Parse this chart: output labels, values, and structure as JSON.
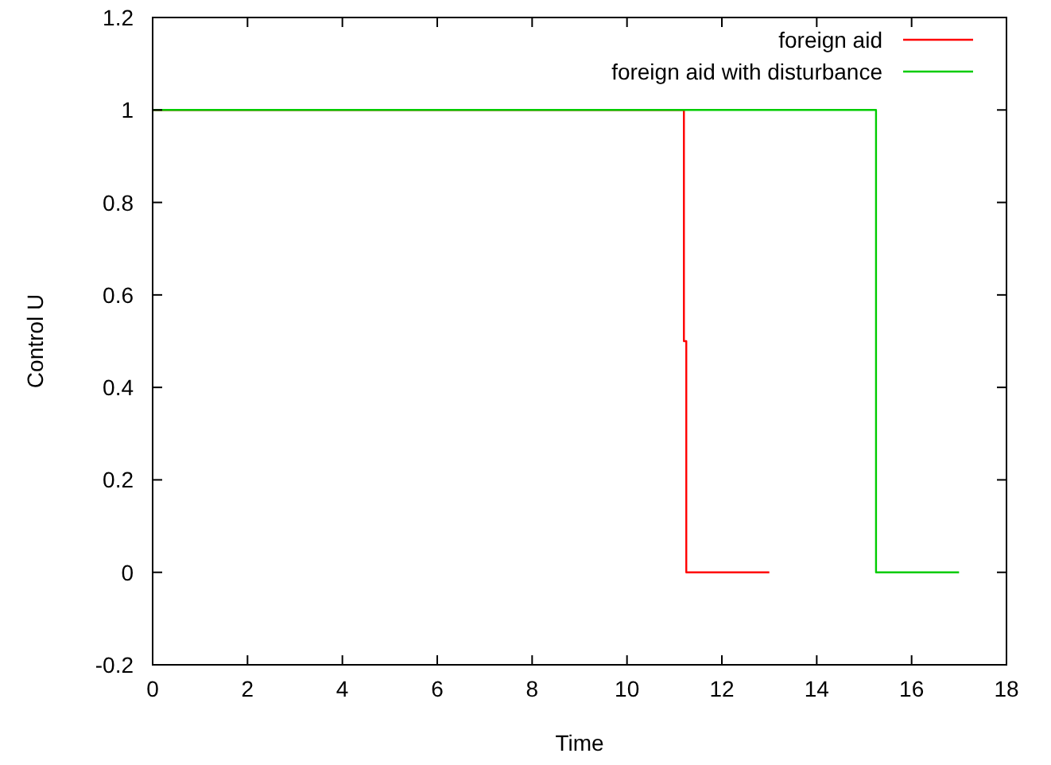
{
  "chart_data": {
    "type": "line",
    "xlabel": "Time",
    "ylabel": "Control U",
    "xlim": [
      0,
      18
    ],
    "xticks": [
      0,
      2,
      4,
      6,
      8,
      10,
      12,
      14,
      16,
      18
    ],
    "ylim": [
      -0.2,
      1.2
    ],
    "yticks": [
      -0.2,
      0,
      0.2,
      0.4,
      0.6,
      0.8,
      1,
      1.2
    ],
    "grid": false,
    "legend": "top right",
    "line_style": "solid",
    "marker": "none",
    "series": [
      {
        "name": "foreign aid",
        "color": "#ff0000",
        "x": [
          0,
          11.2,
          11.2,
          11.25,
          11.25,
          13
        ],
        "values": [
          1,
          1,
          0.5,
          0.5,
          0,
          0
        ]
      },
      {
        "name": "foreign aid with disturbance",
        "color": "#00cc00",
        "x": [
          0,
          15.25,
          15.25,
          17
        ],
        "values": [
          1,
          1,
          0,
          0
        ]
      }
    ]
  }
}
